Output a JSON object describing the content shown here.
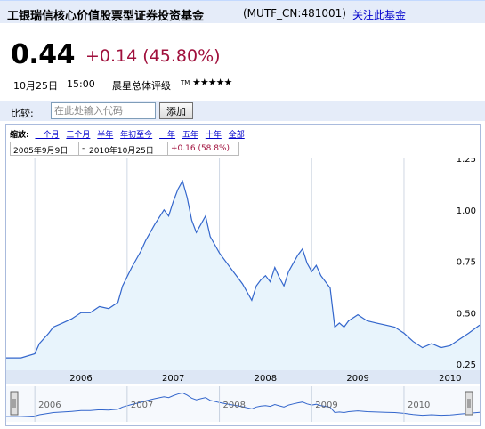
{
  "header": {
    "fund_name": "工银瑞信核心价值股票型证券投资基金",
    "fund_code": "(MUTF_CN:481001)",
    "follow_link": "关注此基金"
  },
  "quote": {
    "price": "0.44",
    "change": "+0.14 (45.80%)",
    "date": "10月25日",
    "time": "15:00",
    "rating_label": "晨星总体评级",
    "rating_tm": "TM",
    "rating_stars": "★★★★★",
    "rating_value": 5
  },
  "compare": {
    "label": "比较:",
    "placeholder": "在此处输入代码",
    "button": "添加"
  },
  "chart_controls": {
    "zoom_label": "缩放:",
    "zoom_links": [
      "一个月",
      "三个月",
      "半年",
      "年初至今",
      "一年",
      "五年",
      "十年",
      "全部"
    ],
    "range_start": "2005年9月9日",
    "range_sep": "-",
    "range_end": "2010年10月25日",
    "range_change": "+0.16 (58.8%)"
  },
  "colors": {
    "line": "#3366cc",
    "fill": "#e8f4fc",
    "negative_red": "#a0103c",
    "link_blue": "#0000cc"
  },
  "chart_data": {
    "type": "area",
    "ylim": [
      0.22,
      1.25
    ],
    "yticks": [
      "1.25",
      "1.00",
      "0.75",
      "0.50",
      "0.25"
    ],
    "ytick_values": [
      1.25,
      1.0,
      0.75,
      0.5,
      0.25
    ],
    "xlim": [
      2005.69,
      2010.82
    ],
    "xtick_labels": [
      "2006",
      "2007",
      "2008",
      "2009",
      "2010"
    ],
    "xtick_values": [
      2006.0,
      2007.0,
      2008.0,
      2009.0,
      2010.0
    ],
    "navigator_labels": [
      "2006",
      "2007",
      "2008",
      "2009",
      "2010"
    ],
    "series": [
      {
        "x": [
          2005.69,
          2005.85,
          2006.0,
          2006.05,
          2006.15,
          2006.2,
          2006.3,
          2006.4,
          2006.5,
          2006.6,
          2006.7,
          2006.8,
          2006.9,
          2006.95,
          2007.05,
          2007.15,
          2007.2,
          2007.3,
          2007.4,
          2007.45,
          2007.5,
          2007.55,
          2007.6,
          2007.65,
          2007.7,
          2007.75,
          2007.8,
          2007.85,
          2007.9,
          2007.95,
          2008.0,
          2008.05,
          2008.1,
          2008.15,
          2008.2,
          2008.25,
          2008.3,
          2008.35,
          2008.4,
          2008.45,
          2008.5,
          2008.55,
          2008.6,
          2008.65,
          2008.7,
          2008.75,
          2008.8,
          2008.85,
          2008.9,
          2008.95,
          2009.0,
          2009.05,
          2009.1,
          2009.15,
          2009.2,
          2009.25,
          2009.3,
          2009.35,
          2009.4,
          2009.5,
          2009.6,
          2009.7,
          2009.8,
          2009.9,
          2010.0,
          2010.1,
          2010.2,
          2010.3,
          2010.4,
          2010.5,
          2010.6,
          2010.7,
          2010.82
        ],
        "values": [
          0.28,
          0.28,
          0.3,
          0.35,
          0.4,
          0.43,
          0.45,
          0.47,
          0.5,
          0.5,
          0.53,
          0.52,
          0.55,
          0.63,
          0.72,
          0.8,
          0.85,
          0.93,
          1.0,
          0.97,
          1.04,
          1.1,
          1.14,
          1.06,
          0.95,
          0.89,
          0.93,
          0.97,
          0.87,
          0.83,
          0.79,
          0.76,
          0.73,
          0.7,
          0.67,
          0.64,
          0.6,
          0.56,
          0.63,
          0.66,
          0.68,
          0.65,
          0.72,
          0.67,
          0.63,
          0.7,
          0.74,
          0.78,
          0.81,
          0.74,
          0.7,
          0.73,
          0.68,
          0.65,
          0.62,
          0.43,
          0.45,
          0.43,
          0.46,
          0.49,
          0.46,
          0.45,
          0.44,
          0.43,
          0.4,
          0.36,
          0.33,
          0.35,
          0.33,
          0.34,
          0.37,
          0.4,
          0.44
        ]
      }
    ]
  }
}
